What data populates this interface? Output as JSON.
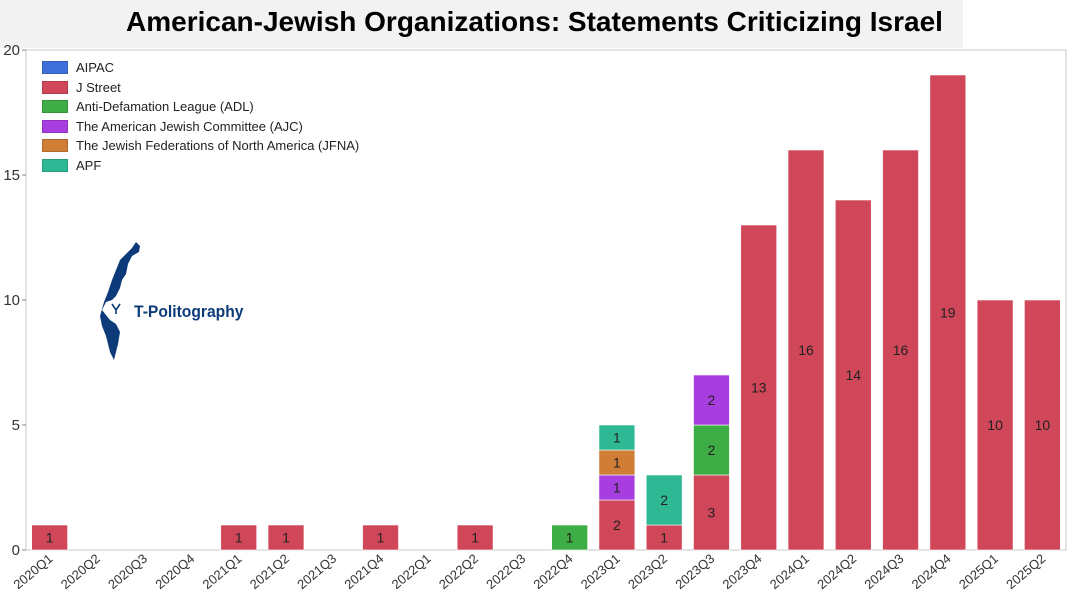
{
  "chart_data": {
    "type": "bar",
    "stacked": true,
    "title": "American-Jewish Organizations: Statements Criticizing Israel",
    "xlabel": "",
    "ylabel": "",
    "ylim": [
      0,
      20
    ],
    "yticks": [
      0,
      5,
      10,
      15,
      20
    ],
    "grid": false,
    "legend_position": "top-left",
    "categories": [
      "2020Q1",
      "2020Q2",
      "2020Q3",
      "2020Q4",
      "2021Q1",
      "2021Q2",
      "2021Q3",
      "2021Q4",
      "2022Q1",
      "2022Q2",
      "2022Q3",
      "2022Q4",
      "2023Q1",
      "2023Q2",
      "2023Q3",
      "2023Q4",
      "2024Q1",
      "2024Q2",
      "2024Q3",
      "2024Q4",
      "2025Q1",
      "2025Q2"
    ],
    "series": [
      {
        "name": "AIPAC",
        "color": "#3f6fd8",
        "values": [
          0,
          0,
          0,
          0,
          0,
          0,
          0,
          0,
          0,
          0,
          0,
          0,
          0,
          0,
          0,
          0,
          0,
          0,
          0,
          0,
          0,
          0
        ]
      },
      {
        "name": "J Street",
        "color": "#d1475a",
        "values": [
          1,
          0,
          0,
          0,
          1,
          1,
          0,
          1,
          0,
          1,
          0,
          0,
          2,
          1,
          3,
          13,
          16,
          14,
          16,
          19,
          10,
          10
        ]
      },
      {
        "name": "Anti-Defamation League (ADL)",
        "color": "#3fad46",
        "values": [
          0,
          0,
          0,
          0,
          0,
          0,
          0,
          0,
          0,
          0,
          0,
          1,
          0,
          0,
          2,
          0,
          0,
          0,
          0,
          0,
          0,
          0
        ]
      },
      {
        "name": "The American Jewish Committee (AJC)",
        "color": "#a83de0",
        "values": [
          0,
          0,
          0,
          0,
          0,
          0,
          0,
          0,
          0,
          0,
          0,
          0,
          1,
          0,
          2,
          0,
          0,
          0,
          0,
          0,
          0,
          0
        ]
      },
      {
        "name": "The Jewish Federations of North America (JFNA)",
        "color": "#d07d35",
        "values": [
          0,
          0,
          0,
          0,
          0,
          0,
          0,
          0,
          0,
          0,
          0,
          0,
          1,
          0,
          0,
          0,
          0,
          0,
          0,
          0,
          0,
          0
        ]
      },
      {
        "name": "APF",
        "color": "#2fb894",
        "values": [
          0,
          0,
          0,
          0,
          0,
          0,
          0,
          0,
          0,
          0,
          0,
          0,
          1,
          2,
          0,
          0,
          0,
          0,
          0,
          0,
          0,
          0
        ]
      }
    ]
  },
  "logo": {
    "text": "T-Politography",
    "color": "#0d3b7a"
  }
}
